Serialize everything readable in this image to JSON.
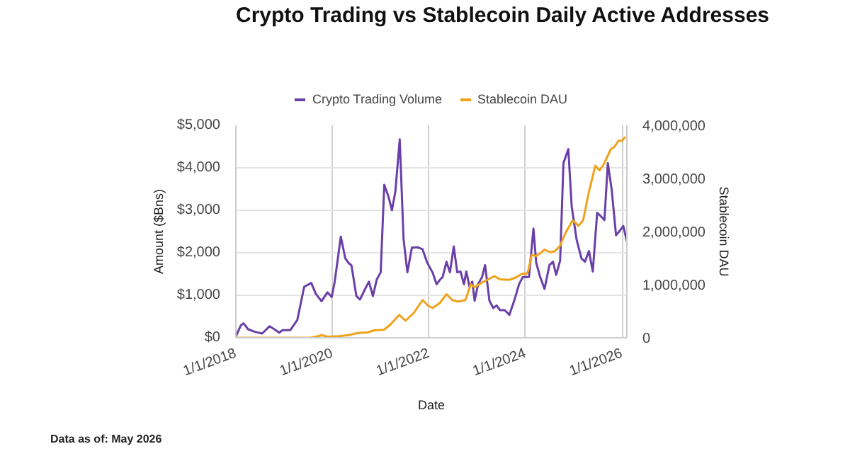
{
  "chart_data": {
    "type": "line",
    "title": "Crypto Trading vs Stablecoin Daily Active Addresses",
    "xlabel": "Date",
    "ylabel": "Amount ($Bns)",
    "y2label": "Stablecoin DAU",
    "annotations": [
      "Data as of: May 2026"
    ],
    "xlim": [
      "2018-01-01",
      "2026-02-07"
    ],
    "xticks": [
      {
        "value": "2018-01-01",
        "label": "1/1/2018"
      },
      {
        "value": "2020-01-01",
        "label": "1/1/2020"
      },
      {
        "value": "2022-01-01",
        "label": "1/1/2022"
      },
      {
        "value": "2024-01-01",
        "label": "1/1/2024"
      },
      {
        "value": "2026-01-01",
        "label": "1/1/2026"
      }
    ],
    "ylim": [
      0,
      5000
    ],
    "yticks": [
      {
        "value": 0,
        "label": "$0"
      },
      {
        "value": 1000,
        "label": "$1,000"
      },
      {
        "value": 2000,
        "label": "$2,000"
      },
      {
        "value": 3000,
        "label": "$3,000"
      },
      {
        "value": 4000,
        "label": "$4,000"
      },
      {
        "value": 5000,
        "label": "$5,000"
      }
    ],
    "y2lim": [
      0,
      4000000
    ],
    "y2ticks": [
      0,
      {
        "value": 1000000,
        "label": "1,000,000"
      },
      {
        "value": 2000000,
        "label": "2,000,000"
      },
      {
        "value": 3000000,
        "label": "3,000,000"
      },
      {
        "value": 4000000,
        "label": "4,000,000"
      }
    ],
    "grid": true,
    "legend": "top",
    "marker": "none",
    "line_style": "solid",
    "series": [
      {
        "name": "Crypto Trading Volume",
        "color": "#6a3fa8",
        "x": [
          "2018-01-01",
          "2018-02-07",
          "2018-02-28",
          "2018-04-04",
          "2018-05-25",
          "2018-07-19",
          "2018-09-13",
          "2018-10-19",
          "2018-11-25",
          "2018-12-20",
          "2019-02-17",
          "2019-04-11",
          "2019-06-02",
          "2019-07-26",
          "2019-08-28",
          "2019-10-11",
          "2019-11-25",
          "2019-12-27",
          "2020-01-19",
          "2020-03-05",
          "2020-04-08",
          "2020-05-03",
          "2020-05-25",
          "2020-07-01",
          "2020-07-28",
          "2020-09-05",
          "2020-10-04",
          "2020-11-03",
          "2020-12-02",
          "2021-01-01",
          "2021-01-28",
          "2021-02-28",
          "2021-03-27",
          "2021-04-22",
          "2021-05-25",
          "2021-06-23",
          "2021-07-22",
          "2021-08-25",
          "2021-10-08",
          "2021-11-14",
          "2021-12-20",
          "2022-01-28",
          "2022-02-28",
          "2022-03-27",
          "2022-04-15",
          "2022-05-14",
          "2022-06-09",
          "2022-07-08",
          "2022-08-03",
          "2022-08-28",
          "2022-09-23",
          "2022-10-11",
          "2022-11-03",
          "2022-11-25",
          "2022-12-13",
          "2023-01-08",
          "2023-02-07",
          "2023-03-02",
          "2023-04-04",
          "2023-05-03",
          "2023-05-28",
          "2023-06-23",
          "2023-07-28",
          "2023-09-02",
          "2023-10-08",
          "2023-11-14",
          "2023-12-13",
          "2024-01-08",
          "2024-01-28",
          "2024-03-02",
          "2024-03-23",
          "2024-04-22",
          "2024-05-25",
          "2024-07-01",
          "2024-07-28",
          "2024-08-21",
          "2024-09-20",
          "2024-10-15",
          "2024-11-21",
          "2024-12-16",
          "2025-01-22",
          "2025-02-28",
          "2025-03-27",
          "2025-04-26",
          "2025-05-25",
          "2025-06-27",
          "2025-07-19",
          "2025-08-21",
          "2025-09-16",
          "2025-10-15",
          "2025-11-17",
          "2025-12-16",
          "2026-01-11",
          "2026-02-07"
        ],
        "values": [
          30,
          290,
          340,
          200,
          140,
          100,
          270,
          200,
          120,
          180,
          180,
          420,
          1200,
          1290,
          1040,
          860,
          1070,
          960,
          1320,
          2380,
          1870,
          1760,
          1700,
          980,
          900,
          1150,
          1320,
          980,
          1370,
          1540,
          3600,
          3330,
          3000,
          3440,
          4670,
          2320,
          1540,
          2120,
          2130,
          2080,
          1760,
          1540,
          1260,
          1370,
          1430,
          1790,
          1540,
          2150,
          1540,
          1560,
          1260,
          1560,
          1210,
          1320,
          870,
          1260,
          1430,
          1710,
          870,
          700,
          760,
          650,
          650,
          540,
          870,
          1260,
          1430,
          1430,
          1430,
          2570,
          1760,
          1430,
          1150,
          1710,
          1790,
          1480,
          1820,
          4110,
          4440,
          3100,
          2320,
          1870,
          1790,
          2040,
          1560,
          2940,
          2880,
          2770,
          4110,
          3490,
          2410,
          2520,
          2630,
          2270
        ]
      },
      {
        "name": "Stablecoin DAU",
        "color": "#f0a21a",
        "axis": "y2",
        "x": [
          "2018-01-01",
          "2019-07-22",
          "2019-09-16",
          "2019-10-11",
          "2019-11-25",
          "2020-02-25",
          "2020-05-03",
          "2020-07-11",
          "2020-09-23",
          "2020-11-14",
          "2021-01-26",
          "2021-03-16",
          "2021-05-21",
          "2021-07-08",
          "2021-09-09",
          "2021-11-14",
          "2021-12-23",
          "2022-01-28",
          "2022-03-23",
          "2022-05-14",
          "2022-06-27",
          "2022-08-10",
          "2022-10-04",
          "2022-11-14",
          "2022-12-13",
          "2023-02-07",
          "2023-03-27",
          "2023-05-10",
          "2023-06-23",
          "2023-09-02",
          "2023-10-26",
          "2023-12-09",
          "2024-01-08",
          "2024-01-22",
          "2024-02-17",
          "2024-03-23",
          "2024-04-22",
          "2024-05-25",
          "2024-07-08",
          "2024-08-10",
          "2024-09-16",
          "2024-11-03",
          "2024-12-23",
          "2025-02-07",
          "2025-03-13",
          "2025-04-26",
          "2025-06-13",
          "2025-07-15",
          "2025-08-21",
          "2025-10-08",
          "2025-11-07",
          "2025-12-05",
          "2026-01-01",
          "2026-01-26"
        ],
        "values": [
          0,
          0,
          30000,
          50000,
          20000,
          30000,
          50000,
          90000,
          100000,
          140000,
          150000,
          250000,
          430000,
          320000,
          470000,
          710000,
          610000,
          560000,
          650000,
          820000,
          710000,
          680000,
          710000,
          1010000,
          950000,
          1040000,
          1100000,
          1160000,
          1100000,
          1090000,
          1140000,
          1210000,
          1200000,
          1250000,
          1560000,
          1540000,
          1590000,
          1660000,
          1610000,
          1630000,
          1720000,
          1990000,
          2210000,
          2110000,
          2210000,
          2750000,
          3240000,
          3150000,
          3290000,
          3550000,
          3600000,
          3710000,
          3710000,
          3780000
        ]
      }
    ]
  }
}
